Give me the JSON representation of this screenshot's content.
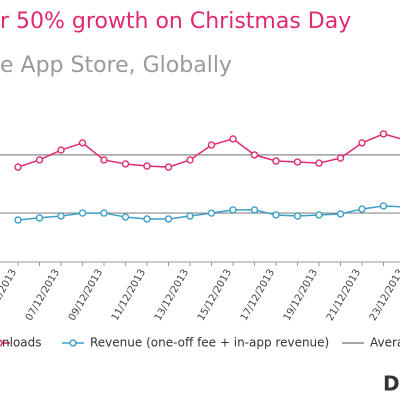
{
  "chart_data": {
    "type": "line",
    "title": "r 50% growth on Christmas Day",
    "subtitle": "e App Store, Globally",
    "categories": [
      "/12/2013",
      null,
      "07/12/2013",
      null,
      "09/12/2013",
      null,
      "11/12/2013",
      null,
      "13/12/2013",
      null,
      "15/12/2013",
      null,
      "17/12/2013",
      null,
      "19/12/2013",
      null,
      "21/12/2013",
      null,
      "23/12/2013"
    ],
    "series": [
      {
        "name": "nloads",
        "color": "#e0296e",
        "values": [
          45.2,
          48.6,
          53.3,
          56.7,
          48.6,
          46.7,
          45.7,
          45.2,
          48.6,
          55.7,
          58.6,
          51.0,
          48.1,
          47.6,
          47.1,
          49.5,
          56.7,
          61.0,
          58.1
        ]
      },
      {
        "name": "Revenue (one-off fee + in-app revenue)",
        "color": "#3b9fc8",
        "values": [
          20.0,
          21.0,
          21.9,
          23.3,
          23.3,
          21.4,
          20.5,
          20.5,
          21.9,
          23.3,
          24.8,
          24.8,
          22.4,
          21.9,
          22.4,
          22.9,
          25.2,
          26.7,
          26.2
        ]
      }
    ],
    "average": {
      "name": "Avera",
      "color": "#8a8a8a",
      "values": [
        51.0,
        23.3
      ]
    },
    "ylim": [
      0,
      100
    ],
    "logo": "D"
  }
}
